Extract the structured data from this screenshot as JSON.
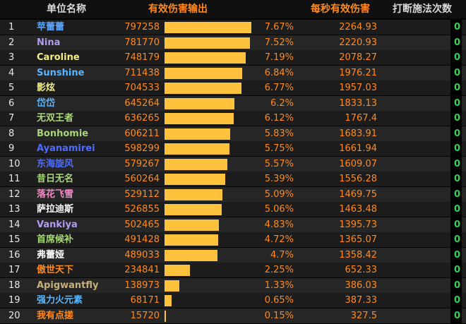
{
  "header": {
    "name": "单位名称",
    "total": "有效伤害输出",
    "dps": "每秒有效伤害",
    "kicks": "打断施法次数"
  },
  "colors": {
    "orange": "#ff8a1f",
    "bar": "#ffc23d",
    "green": "#39d05a"
  },
  "rows": [
    {
      "rank": "1",
      "name": "苹蕾蕾",
      "color": "#59a6ff",
      "total": "797258",
      "pct": "7.67%",
      "pct_value": 7.67,
      "dps": "2264.93",
      "kicks": "0"
    },
    {
      "rank": "2",
      "name": "Nina",
      "color": "#b19cf2",
      "total": "781770",
      "pct": "7.52%",
      "pct_value": 7.52,
      "dps": "2220.93",
      "kicks": "0"
    },
    {
      "rank": "3",
      "name": "Caroline",
      "color": "#f2f080",
      "total": "748179",
      "pct": "7.19%",
      "pct_value": 7.19,
      "dps": "2078.27",
      "kicks": "0"
    },
    {
      "rank": "4",
      "name": "Sunshine",
      "color": "#59b6ff",
      "total": "711438",
      "pct": "6.84%",
      "pct_value": 6.84,
      "dps": "1976.21",
      "kicks": "0"
    },
    {
      "rank": "5",
      "name": "影炫",
      "color": "#f2f080",
      "total": "704533",
      "pct": "6.77%",
      "pct_value": 6.77,
      "dps": "1957.03",
      "kicks": "0"
    },
    {
      "rank": "6",
      "name": "岱岱",
      "color": "#59b6ff",
      "total": "645264",
      "pct": "6.2%",
      "pct_value": 6.2,
      "dps": "1833.13",
      "kicks": "0"
    },
    {
      "rank": "7",
      "name": "无双王者",
      "color": "#a8d67a",
      "total": "636265",
      "pct": "6.12%",
      "pct_value": 6.12,
      "dps": "1767.4",
      "kicks": "0"
    },
    {
      "rank": "8",
      "name": "Bonhomie",
      "color": "#a8d67a",
      "total": "606211",
      "pct": "5.83%",
      "pct_value": 5.83,
      "dps": "1683.91",
      "kicks": "0"
    },
    {
      "rank": "9",
      "name": "Ayanamirei",
      "color": "#4e6bff",
      "total": "598299",
      "pct": "5.75%",
      "pct_value": 5.75,
      "dps": "1661.94",
      "kicks": "0"
    },
    {
      "rank": "10",
      "name": "东海旋风",
      "color": "#4e6bff",
      "total": "579267",
      "pct": "5.57%",
      "pct_value": 5.57,
      "dps": "1609.07",
      "kicks": "0"
    },
    {
      "rank": "11",
      "name": "昔日无名",
      "color": "#a8d67a",
      "total": "560264",
      "pct": "5.39%",
      "pct_value": 5.39,
      "dps": "1556.28",
      "kicks": "0"
    },
    {
      "rank": "12",
      "name": "落花飞雪",
      "color": "#f58cc8",
      "total": "529112",
      "pct": "5.09%",
      "pct_value": 5.09,
      "dps": "1469.75",
      "kicks": "0"
    },
    {
      "rank": "13",
      "name": "萨拉迪斯",
      "color": "#ffffff",
      "total": "526855",
      "pct": "5.06%",
      "pct_value": 5.06,
      "dps": "1463.48",
      "kicks": "0"
    },
    {
      "rank": "14",
      "name": "Vankiya",
      "color": "#b19cf2",
      "total": "502465",
      "pct": "4.83%",
      "pct_value": 4.83,
      "dps": "1395.73",
      "kicks": "0"
    },
    {
      "rank": "15",
      "name": "首席候补",
      "color": "#a8d67a",
      "total": "491428",
      "pct": "4.72%",
      "pct_value": 4.72,
      "dps": "1365.07",
      "kicks": "0"
    },
    {
      "rank": "16",
      "name": "弗蕾娅",
      "color": "#ffffff",
      "total": "489033",
      "pct": "4.7%",
      "pct_value": 4.7,
      "dps": "1358.42",
      "kicks": "0"
    },
    {
      "rank": "17",
      "name": "傲世天下",
      "color": "#ff8a1f",
      "total": "234841",
      "pct": "2.25%",
      "pct_value": 2.25,
      "dps": "652.33",
      "kicks": "0"
    },
    {
      "rank": "18",
      "name": "Apigwantfly",
      "color": "#c8b07a",
      "total": "138973",
      "pct": "1.33%",
      "pct_value": 1.33,
      "dps": "386.03",
      "kicks": "0"
    },
    {
      "rank": "19",
      "name": "强力火元素",
      "color": "#59b6ff",
      "total": "68171",
      "pct": "0.65%",
      "pct_value": 0.65,
      "dps": "387.33",
      "kicks": "0"
    },
    {
      "rank": "20",
      "name": "我有点搓",
      "color": "#ff8a1f",
      "total": "15720",
      "pct": "0.15%",
      "pct_value": 0.15,
      "dps": "327.5",
      "kicks": "0"
    }
  ]
}
